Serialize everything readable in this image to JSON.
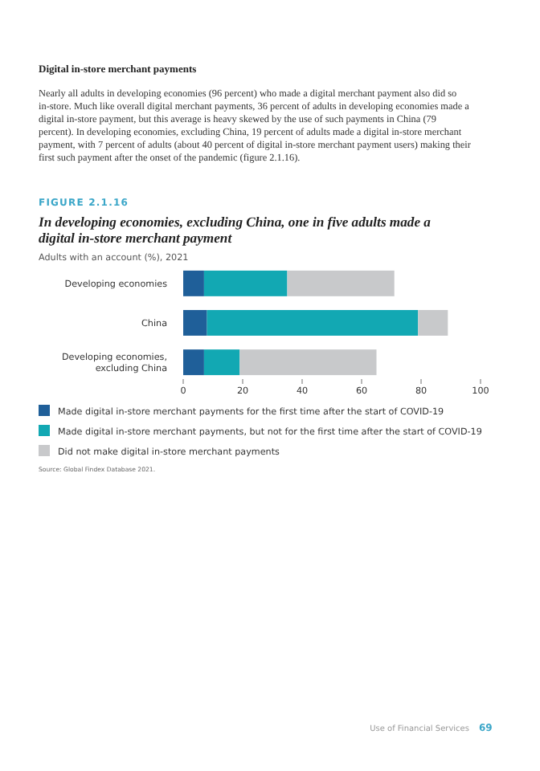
{
  "chart_data": {
    "type": "bar",
    "orientation": "horizontal",
    "stacked": true,
    "title": "In developing economies, excluding China, one in five adults made a digital in-store merchant payment",
    "subtitle": "Adults with an account (%), 2021",
    "categories": [
      "Developing economies",
      "China",
      "Developing economies, excluding China"
    ],
    "series": [
      {
        "name": "Made digital in-store merchant payments for the first time after the start of COVID-19",
        "color": "#1f5f99",
        "values": [
          7,
          8,
          7
        ]
      },
      {
        "name": "Made digital in-store merchant payments, but not for the first time after the start of COVID-19",
        "color": "#12a8b3",
        "values": [
          28,
          71,
          12
        ]
      },
      {
        "name": "Did not make digital in-store merchant payments",
        "color": "#c8c9cb",
        "values": [
          36,
          10,
          46
        ]
      }
    ],
    "xlim": [
      0,
      100
    ],
    "xticks": [
      0,
      20,
      40,
      60,
      80,
      100
    ],
    "legend": "bottom",
    "annotations": [
      "Digital in-store merchant payments",
      "Nearly all adults in developing economies (96 percent) who made a digital merchant payment also did so in-store. Much like overall digital merchant payments, 36 percent of adults in developing economies made a digital in-store payment, but this average is heavy skewed by the use of such payments in China (79 percent). In developing economies, excluding China, 19 percent of adults made a digital in-store merchant payment, with 7 percent of adults (about 40 percent of digital in-store merchant payment users) making their first such payment after the onset of the pandemic (figure 2.1.16).",
      "FIGURE 2.1.16",
      "Source: Global Findex Database 2021.",
      "Use of Financial Services",
      "69"
    ]
  }
}
